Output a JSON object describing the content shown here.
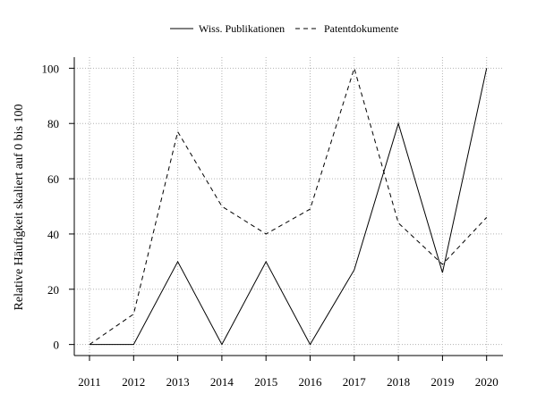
{
  "chart_data": {
    "type": "line",
    "title": "",
    "xlabel": "",
    "ylabel": "Relative Häufigkeit skaliert auf 0 bis 100",
    "x": [
      "2011",
      "2012",
      "2013",
      "2014",
      "2015",
      "2016",
      "2017",
      "2018",
      "2019",
      "2020"
    ],
    "ylim": [
      -4,
      104
    ],
    "yticks": [
      "0",
      "20",
      "40",
      "60",
      "80",
      "100"
    ],
    "grid": true,
    "legend_position": "top",
    "series": [
      {
        "name": "Wiss. Publikationen",
        "style": "solid",
        "color": "#000000",
        "values": [
          0,
          0,
          30,
          0,
          30,
          0,
          27,
          80,
          26,
          100
        ]
      },
      {
        "name": "Patentdokumente",
        "style": "dashed",
        "color": "#000000",
        "values": [
          0,
          11,
          77,
          50,
          40,
          49,
          100,
          44,
          29,
          46
        ]
      }
    ]
  }
}
